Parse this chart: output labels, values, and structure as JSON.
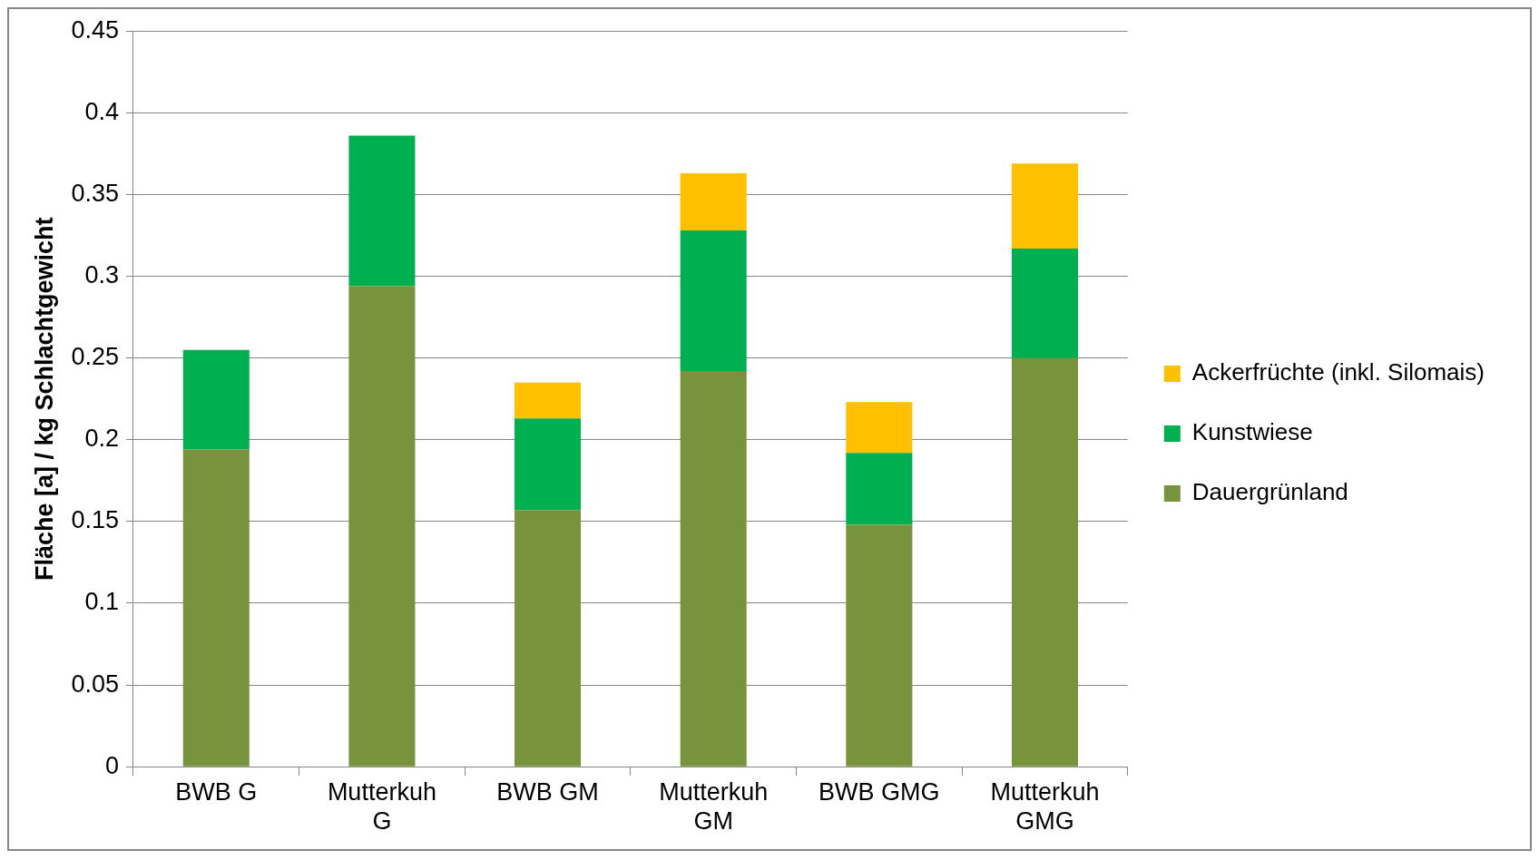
{
  "chart_data": {
    "type": "bar",
    "stacked": true,
    "ylabel": "Fläche [a] / kg Schlachtgewicht",
    "categories": [
      "BWB G",
      "Mutterkuh G",
      "BWB GM",
      "Mutterkuh GM",
      "BWB GMG",
      "Mutterkuh GMG"
    ],
    "series": [
      {
        "name": "Dauergrünland",
        "color": "#77933c",
        "values": [
          0.194,
          0.294,
          0.157,
          0.242,
          0.148,
          0.25
        ]
      },
      {
        "name": "Kunstwiese",
        "color": "#00b050",
        "values": [
          0.061,
          0.092,
          0.056,
          0.086,
          0.044,
          0.067
        ]
      },
      {
        "name": "Ackerfrüchte (inkl. Silomais)",
        "color": "#ffc000",
        "values": [
          null,
          null,
          0.022,
          0.035,
          0.031,
          0.052
        ]
      }
    ],
    "ylim": [
      0,
      0.45
    ],
    "yticks": [
      0,
      0.05,
      0.1,
      0.15,
      0.2,
      0.25,
      0.3,
      0.35,
      0.4,
      0.45
    ],
    "grid": "y",
    "legend": "right"
  }
}
